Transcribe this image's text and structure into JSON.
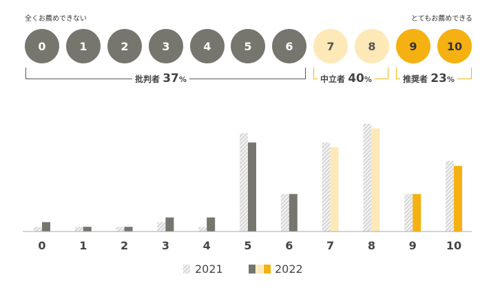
{
  "scale": {
    "low_label": "全くお薦めできない",
    "high_label": "とてもお薦めできる",
    "scores": [
      "0",
      "1",
      "2",
      "3",
      "4",
      "5",
      "6",
      "7",
      "8",
      "9",
      "10"
    ]
  },
  "groups": {
    "detractor": {
      "label": "批判者",
      "percent": "37",
      "unit": "%"
    },
    "passive": {
      "label": "中立者",
      "percent": "40",
      "unit": "%"
    },
    "promoter": {
      "label": "推奨者",
      "percent": "23",
      "unit": "%"
    }
  },
  "colors": {
    "detractor": "#76766f",
    "passive": "#fde9b8",
    "promoter": "#f5b111",
    "hatch": "#cccccc",
    "bracket_gray": "#555555",
    "bracket_yellow": "#f5b111"
  },
  "chart_data": {
    "type": "bar",
    "categories": [
      "0",
      "1",
      "2",
      "3",
      "4",
      "5",
      "6",
      "7",
      "8",
      "9",
      "10"
    ],
    "series": [
      {
        "name": "2021",
        "values": [
          1,
          1,
          1,
          2,
          1,
          21,
          8,
          19,
          23,
          8,
          15
        ]
      },
      {
        "name": "2022",
        "values": [
          2,
          1,
          1,
          3,
          3,
          19,
          8,
          18,
          22,
          8,
          14
        ]
      }
    ],
    "ylim": [
      0,
      25
    ],
    "grid": false,
    "legend": "bottom-center"
  }
}
